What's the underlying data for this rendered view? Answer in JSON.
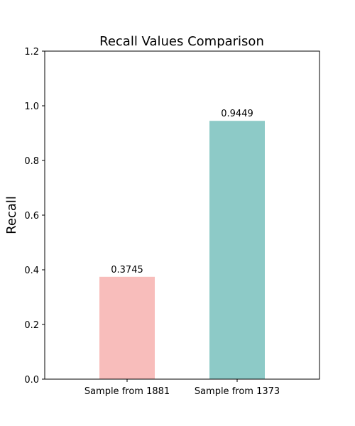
{
  "chart_data": {
    "type": "bar",
    "title": "Recall Values Comparison",
    "xlabel": "",
    "ylabel": "Recall",
    "categories": [
      "Sample from 1881",
      "Sample from 1373"
    ],
    "values": [
      0.3745,
      0.9449
    ],
    "value_labels": [
      "0.3745",
      "0.9449"
    ],
    "colors": [
      "#f8bdbb",
      "#8dcac7"
    ],
    "ylim": [
      0,
      1.2
    ],
    "yticks": [
      0.0,
      0.2,
      0.4,
      0.6,
      0.8,
      1.0,
      1.2
    ],
    "ytick_labels": [
      "0.0",
      "0.2",
      "0.4",
      "0.6",
      "0.8",
      "1.0",
      "1.2"
    ],
    "grid": false
  }
}
